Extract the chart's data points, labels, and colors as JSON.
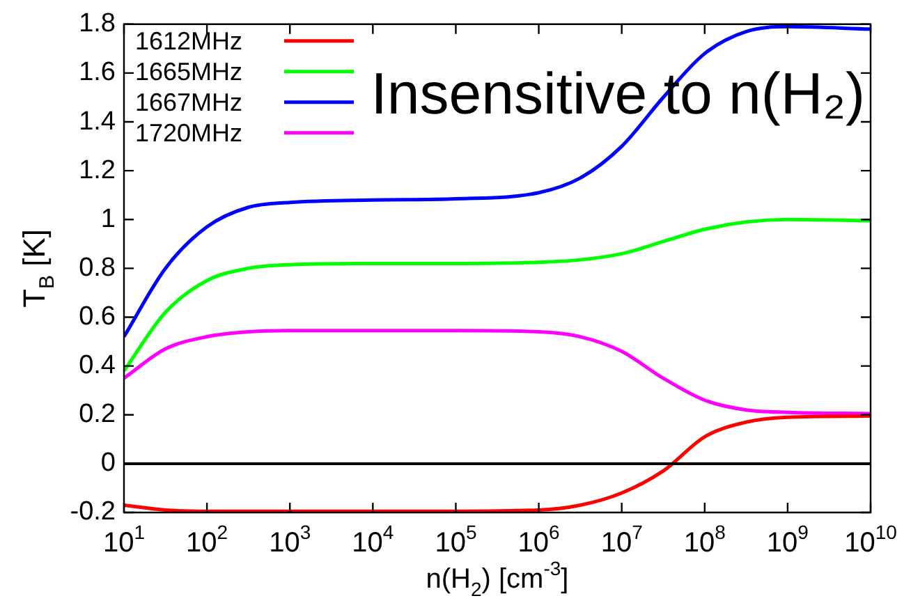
{
  "chart_data": {
    "type": "line",
    "xlabel": "n(H$_{2}$) [cm$^{-3}$]",
    "ylabel": "T$_{B}$ [K]",
    "log": "x",
    "x": [
      10,
      31.6,
      100,
      316,
      1000,
      10000,
      100000,
      1000000,
      3160000,
      10000000,
      31600000,
      100000000,
      316000000,
      1000000000,
      10000000000
    ],
    "series": [
      {
        "name": "1612MHz",
        "color": "#ff0000",
        "values": [
          -0.17,
          -0.19,
          -0.195,
          -0.195,
          -0.195,
          -0.195,
          -0.195,
          -0.19,
          -0.17,
          -0.12,
          -0.03,
          0.11,
          0.17,
          0.19,
          0.195
        ]
      },
      {
        "name": "1665MHz",
        "color": "#00ff00",
        "values": [
          0.38,
          0.62,
          0.75,
          0.8,
          0.815,
          0.82,
          0.82,
          0.825,
          0.835,
          0.86,
          0.91,
          0.96,
          0.99,
          1.0,
          0.995
        ]
      },
      {
        "name": "1667MHz",
        "color": "#0000ff",
        "values": [
          0.52,
          0.8,
          0.97,
          1.05,
          1.07,
          1.08,
          1.085,
          1.11,
          1.17,
          1.3,
          1.5,
          1.68,
          1.77,
          1.79,
          1.78
        ]
      },
      {
        "name": "1720MHz",
        "color": "#ff00ff",
        "values": [
          0.35,
          0.47,
          0.52,
          0.54,
          0.545,
          0.545,
          0.545,
          0.54,
          0.52,
          0.46,
          0.35,
          0.26,
          0.22,
          0.21,
          0.205
        ]
      }
    ],
    "xlim": [
      10,
      10000000000
    ],
    "xticks": [
      {
        "value": 10,
        "label": "10$^{1}$"
      },
      {
        "value": 100,
        "label": "10$^{2}$"
      },
      {
        "value": 1000,
        "label": "10$^{3}$"
      },
      {
        "value": 10000,
        "label": "10$^{4}$"
      },
      {
        "value": 100000,
        "label": "10$^{5}$"
      },
      {
        "value": 1000000,
        "label": "10$^{6}$"
      },
      {
        "value": 10000000,
        "label": "10$^{7}$"
      },
      {
        "value": 100000000,
        "label": "10$^{8}$"
      },
      {
        "value": 1000000000,
        "label": "10$^{9}$"
      },
      {
        "value": 10000000000,
        "label": "10$^{10}$"
      }
    ],
    "ylim": [
      -0.2,
      1.8
    ],
    "yticks": [
      -0.2,
      0,
      0.2,
      0.4,
      0.6,
      0.8,
      1,
      1.2,
      1.4,
      1.6,
      1.8
    ],
    "ref_lines": [
      {
        "axis": "y",
        "value": 0,
        "color": "#000000"
      }
    ],
    "annotations": [
      "Insensitive to n(H₂)"
    ],
    "legend": "top left",
    "grid": false,
    "marker": "none",
    "line_style": "solid"
  }
}
